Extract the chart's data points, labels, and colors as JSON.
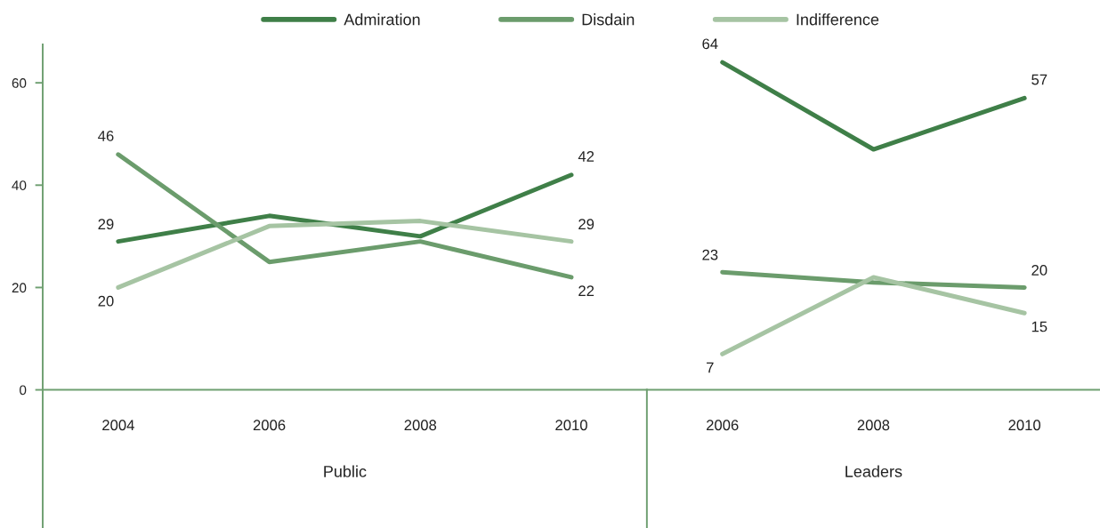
{
  "chart_data": [
    {
      "type": "line",
      "xlabel": "Public",
      "categories": [
        "2004",
        "2006",
        "2008",
        "2010"
      ],
      "ylim": [
        -27,
        67.5
      ],
      "yticks": [
        0,
        20,
        40,
        60
      ],
      "legend": "top",
      "series": [
        {
          "name": "Admiration",
          "color": "#3f7f48",
          "values": [
            29,
            34,
            30,
            42
          ],
          "value_labels": [
            "29",
            null,
            null,
            "42"
          ]
        },
        {
          "name": "Disdain",
          "color": "#6b9c6c",
          "values": [
            46,
            25,
            29,
            22
          ],
          "value_labels": [
            "46",
            null,
            null,
            "22"
          ]
        },
        {
          "name": "Indifference",
          "color": "#a6c4a3",
          "values": [
            20,
            32,
            33,
            29
          ],
          "value_labels": [
            "20",
            null,
            null,
            "29"
          ]
        }
      ]
    },
    {
      "type": "line",
      "xlabel": "Leaders",
      "categories": [
        "2006",
        "2008",
        "2010"
      ],
      "tick_labels": "x",
      "legend": "top",
      "series": [
        {
          "name": "Admiration",
          "color": "#3f7f48",
          "values": [
            64,
            47,
            57
          ],
          "value_labels": [
            "64",
            null,
            "57"
          ]
        },
        {
          "name": "Disdain",
          "color": "#6b9c6c",
          "values": [
            23,
            21,
            20
          ],
          "value_labels": [
            "23",
            null,
            "20"
          ]
        },
        {
          "name": "Indifference",
          "color": "#a6c4a3",
          "values": [
            7,
            22,
            15
          ],
          "value_labels": [
            "7",
            null,
            "15"
          ]
        }
      ]
    }
  ]
}
